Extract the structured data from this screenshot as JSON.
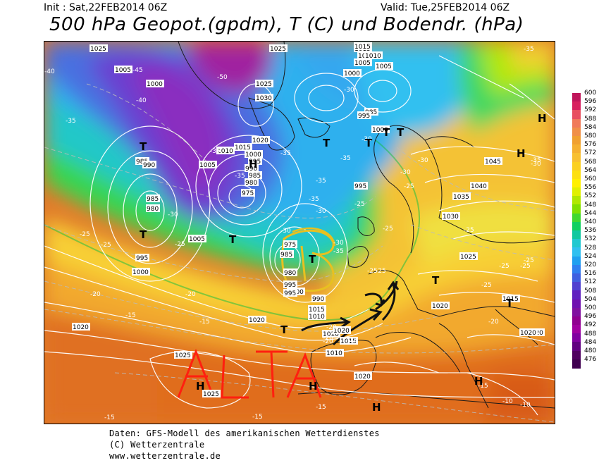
{
  "header": {
    "init": "Init : Sat,22FEB2014 06Z",
    "valid": "Valid: Tue,25FEB2014 06Z",
    "title": "500 hPa Geopot.(gpdm), T (C) und Bodendr. (hPa)"
  },
  "colorbar": {
    "levels": [
      "600",
      "596",
      "592",
      "588",
      "584",
      "580",
      "576",
      "572",
      "568",
      "564",
      "560",
      "556",
      "552",
      "548",
      "544",
      "540",
      "536",
      "532",
      "528",
      "524",
      "520",
      "516",
      "512",
      "508",
      "504",
      "500",
      "496",
      "492",
      "488",
      "484",
      "480",
      "476"
    ],
    "colors": [
      "#c0155b",
      "#d81f5f",
      "#e8505f",
      "#f07a5a",
      "#f08f48",
      "#f0a030",
      "#f5b030",
      "#f8c030",
      "#fbd020",
      "#fde010",
      "#fff000",
      "#e0f000",
      "#b0e800",
      "#80e000",
      "#40d830",
      "#10d060",
      "#10c8a0",
      "#20c8d0",
      "#30c0f0",
      "#20a0f0",
      "#3080f0",
      "#4060e0",
      "#5040d0",
      "#6020c0",
      "#7010b0",
      "#8010a0",
      "#900090",
      "#a000a0",
      "#8000a0",
      "#600080",
      "#500060",
      "#400050"
    ]
  },
  "map_labels": {
    "pressure": [
      {
        "t": "1025"
      },
      {
        "t": "1025"
      },
      {
        "t": "1015"
      },
      {
        "t": "1010"
      },
      {
        "t": "1005"
      },
      {
        "t": "1005"
      },
      {
        "t": "1000"
      },
      {
        "t": "1025"
      },
      {
        "t": "1030"
      },
      {
        "t": "1000"
      },
      {
        "t": "1020"
      },
      {
        "t": "1015"
      },
      {
        "t": "1010"
      },
      {
        "t": "1000"
      },
      {
        "t": "995"
      },
      {
        "t": "990"
      },
      {
        "t": "985"
      },
      {
        "t": "980"
      },
      {
        "t": "975"
      },
      {
        "t": "985"
      },
      {
        "t": "990"
      },
      {
        "t": "985"
      },
      {
        "t": "980"
      },
      {
        "t": "995"
      },
      {
        "t": "1000"
      },
      {
        "t": "1005"
      },
      {
        "t": "1005"
      },
      {
        "t": "995"
      },
      {
        "t": "1000"
      },
      {
        "t": "1010"
      },
      {
        "t": "1015"
      },
      {
        "t": "985"
      },
      {
        "t": "980"
      },
      {
        "t": "975"
      },
      {
        "t": "995"
      },
      {
        "t": "1005"
      },
      {
        "t": "1010"
      },
      {
        "t": "1015"
      },
      {
        "t": "1020"
      },
      {
        "t": "1020"
      },
      {
        "t": "1020"
      },
      {
        "t": "1025"
      },
      {
        "t": "1025"
      },
      {
        "t": "1045"
      },
      {
        "t": "1040"
      },
      {
        "t": "1035"
      },
      {
        "t": "1030"
      },
      {
        "t": "1025"
      },
      {
        "t": "1020"
      },
      {
        "t": "1015"
      },
      {
        "t": "1020"
      },
      {
        "t": "1020"
      },
      {
        "t": "1020"
      },
      {
        "t": "1015"
      },
      {
        "t": "1010"
      },
      {
        "t": "995"
      },
      {
        "t": "990"
      },
      {
        "t": "985"
      },
      {
        "t": "1000"
      },
      {
        "t": "995"
      },
      {
        "t": "1020"
      }
    ],
    "temperature": [
      {
        "t": "-40"
      },
      {
        "t": "-45"
      },
      {
        "t": "-40"
      },
      {
        "t": "-35"
      },
      {
        "t": "-50"
      },
      {
        "t": "-35"
      },
      {
        "t": "-35"
      },
      {
        "t": "-35"
      },
      {
        "t": "-35"
      },
      {
        "t": "-30"
      },
      {
        "t": "-35"
      },
      {
        "t": "-30"
      },
      {
        "t": "-30"
      },
      {
        "t": "-35"
      },
      {
        "t": "-30"
      },
      {
        "t": "-30"
      },
      {
        "t": "-25"
      },
      {
        "t": "-25"
      },
      {
        "t": "-20"
      },
      {
        "t": "-25"
      },
      {
        "t": "-20"
      },
      {
        "t": "-15"
      },
      {
        "t": "-15"
      },
      {
        "t": "-20"
      },
      {
        "t": "-20"
      },
      {
        "t": "-25"
      },
      {
        "t": "-30"
      },
      {
        "t": "-25"
      },
      {
        "t": "-25"
      },
      {
        "t": "-25"
      },
      {
        "t": "-25"
      },
      {
        "t": "-25"
      },
      {
        "t": "-25"
      },
      {
        "t": "-20"
      },
      {
        "t": "-20"
      },
      {
        "t": "-20"
      },
      {
        "t": "-15"
      },
      {
        "t": "-15"
      },
      {
        "t": "-15"
      },
      {
        "t": "-10"
      },
      {
        "t": "-10"
      },
      {
        "t": "-35"
      },
      {
        "t": "-30"
      },
      {
        "t": "-35"
      },
      {
        "t": "-30"
      },
      {
        "t": "-25"
      },
      {
        "t": "-25"
      },
      {
        "t": "-30"
      },
      {
        "t": "-25"
      },
      {
        "t": "-35"
      },
      {
        "t": "-15"
      }
    ],
    "centers": [
      {
        "t": "T"
      },
      {
        "t": "T"
      },
      {
        "t": "T"
      },
      {
        "t": "T"
      },
      {
        "t": "T"
      },
      {
        "t": "T"
      },
      {
        "t": "T"
      },
      {
        "t": "T"
      },
      {
        "t": "T"
      },
      {
        "t": "T"
      },
      {
        "t": "T"
      },
      {
        "t": "H"
      },
      {
        "t": "H"
      },
      {
        "t": "H"
      },
      {
        "t": "H"
      },
      {
        "t": "H"
      },
      {
        "t": "H"
      },
      {
        "t": "H"
      }
    ]
  },
  "annotations": {
    "low_mark": "B",
    "high_mark": "ALTA"
  },
  "footer": {
    "line1": "Daten: GFS-Modell des amerikanischen Wetterdienstes",
    "line2": "(C) Wetterzentrale",
    "line3": "www.wetterzentrale.de"
  }
}
